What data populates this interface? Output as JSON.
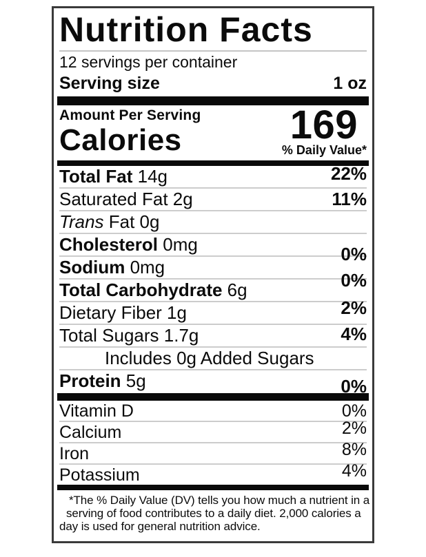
{
  "label": {
    "title": "Nutrition Facts",
    "servings_per_container": "12 servings per container",
    "serving_size_label": "Serving size",
    "serving_size_value": "1 oz",
    "amount_per_serving": "Amount Per Serving",
    "calories_label": "Calories",
    "calories_value": "169",
    "daily_value_header": "% Daily Value*",
    "nutrients": [
      {
        "name": "Total Fat",
        "amount": "14g",
        "dv": "22%",
        "style": "bold"
      },
      {
        "name": "Saturated Fat",
        "amount": "2g",
        "dv": "11%",
        "style": "normal"
      },
      {
        "name": "Trans Fat",
        "amount": "0g",
        "dv": "",
        "style": "italic-first"
      },
      {
        "name": "Cholesterol",
        "amount": "0mg",
        "dv": "0%",
        "style": "bold"
      },
      {
        "name": "Sodium",
        "amount": "0mg",
        "dv": "0%",
        "style": "bold"
      },
      {
        "name": "Total Carbohydrate",
        "amount": "6g",
        "dv": "2%",
        "style": "bold"
      },
      {
        "name": "Dietary Fiber",
        "amount": "1g",
        "dv": "4%",
        "style": "normal"
      },
      {
        "name": "Total Sugars",
        "amount": "1.7g",
        "dv": "",
        "style": "normal"
      },
      {
        "name": "Includes 0g Added Sugars",
        "amount": "",
        "dv": "",
        "style": "indent"
      },
      {
        "name": "Protein",
        "amount": "5g",
        "dv": "0%",
        "style": "bold"
      }
    ],
    "vitamins": [
      {
        "name": "Vitamin D",
        "dv": "0%"
      },
      {
        "name": "Calcium",
        "dv": "2%"
      },
      {
        "name": "Iron",
        "dv": "8%"
      },
      {
        "name": "Potassium",
        "dv": "4%"
      }
    ],
    "footnote_lines": [
      "*The % Daily Value (DV) tells you how much a nutrient in a",
      "serving of food contributes to a daily diet. 2,000 calories a",
      "day is used for general nutrition advice."
    ]
  },
  "colors": {
    "text": "#0b0b0b",
    "bar": "#0a0a0a",
    "border": "#3a3a3a",
    "separator": "#cccccc",
    "background": "#ffffff"
  }
}
